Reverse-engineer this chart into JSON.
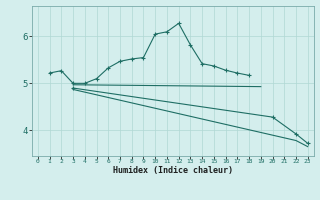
{
  "xlabel": "Humidex (Indice chaleur)",
  "bg_color": "#d4eeed",
  "line_color": "#1e6e64",
  "grid_color": "#b0d8d4",
  "xlim": [
    -0.5,
    23.5
  ],
  "ylim": [
    3.45,
    6.65
  ],
  "yticks": [
    4,
    5,
    6
  ],
  "xticks": [
    0,
    1,
    2,
    3,
    4,
    5,
    6,
    7,
    8,
    9,
    10,
    11,
    12,
    13,
    14,
    15,
    16,
    17,
    18,
    19,
    20,
    21,
    22,
    23
  ],
  "line1_x": [
    1,
    2,
    3,
    4,
    5,
    6,
    7,
    8,
    9,
    10,
    11,
    12,
    13,
    14,
    15,
    16,
    17,
    18
  ],
  "line1_y": [
    5.22,
    5.27,
    5.0,
    5.0,
    5.1,
    5.33,
    5.47,
    5.52,
    5.55,
    6.05,
    6.1,
    6.28,
    5.82,
    5.42,
    5.37,
    5.28,
    5.22,
    5.17
  ],
  "line2_x": [
    3,
    19
  ],
  "line2_y": [
    4.97,
    4.93
  ],
  "line3_x": [
    3,
    20,
    22,
    23
  ],
  "line3_y": [
    4.9,
    4.28,
    3.92,
    3.72
  ],
  "line4_x": [
    3,
    22,
    23
  ],
  "line4_y": [
    4.87,
    3.78,
    3.65
  ]
}
